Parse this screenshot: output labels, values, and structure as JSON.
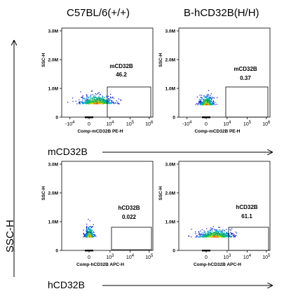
{
  "titles": {
    "col_left": "C57BL/6(+/+)",
    "col_right": "B-hCD32B(H/H)",
    "row_top": "mCD32B",
    "row_bottom": "hCD32B",
    "y_axis": "SSC-H"
  },
  "chart_data": [
    {
      "type": "scatter",
      "panel": "top-left",
      "ylabel": "SSC-H",
      "xlabel": "Comp-mCD32B PE-H",
      "xticks": [
        "-10^4",
        "0",
        "10^4",
        "10^5",
        "10^6"
      ],
      "yticks": [
        "0",
        "1.0M",
        "2.0M",
        "3.0M"
      ],
      "gate": {
        "label": "mCD32B",
        "value": "46.2"
      },
      "population": {
        "x_center": 0.5,
        "x_spread": 1.3,
        "y_center": 0.45,
        "y_spread": 0.3,
        "cells": 700
      }
    },
    {
      "type": "scatter",
      "panel": "top-right",
      "ylabel": "SSC-H",
      "xlabel": "Comp-mCD32B PE-H",
      "xticks": [
        "-10^4",
        "0",
        "10^4",
        "10^5",
        "10^6"
      ],
      "yticks": [
        "0",
        "1.0M",
        "2.0M",
        "3.0M"
      ],
      "gate": {
        "label": "mCD32B",
        "value": "0.37"
      },
      "population": {
        "x_center": 0.0,
        "x_spread": 0.55,
        "y_center": 0.4,
        "y_spread": 0.3,
        "cells": 520
      }
    },
    {
      "type": "scatter",
      "panel": "bottom-left",
      "ylabel": "SSC-H",
      "xlabel": "Comp-hCD32B APC-H",
      "xticks": [
        "0",
        "10^3",
        "10^4",
        "10^5"
      ],
      "yticks": [
        "0",
        "1.0M",
        "2.0M",
        "3.0M"
      ],
      "gate": {
        "label": "hCD32B",
        "value": "0.022"
      },
      "population": {
        "x_center": 0.0,
        "x_spread": 0.35,
        "y_center": 0.45,
        "y_spread": 0.35,
        "cells": 450
      }
    },
    {
      "type": "scatter",
      "panel": "bottom-right",
      "ylabel": "SSC-H",
      "xlabel": "Comp-hCD32B APC-H",
      "xticks": [
        "0",
        "10^3",
        "10^4",
        "10^5"
      ],
      "yticks": [
        "0",
        "1.0M",
        "2.0M",
        "3.0M"
      ],
      "gate": {
        "label": "hCD32B",
        "value": "61.1"
      },
      "population": {
        "x_center": 0.6,
        "x_spread": 1.3,
        "y_center": 0.45,
        "y_spread": 0.25,
        "cells": 800
      }
    }
  ]
}
